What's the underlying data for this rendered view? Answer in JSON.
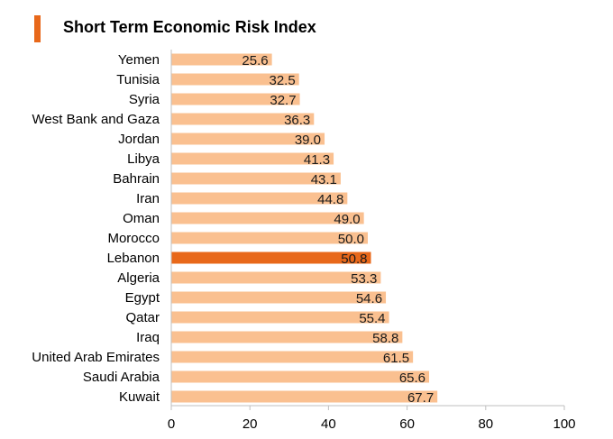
{
  "header": {
    "title": "Short Term Economic Risk Index"
  },
  "chart_data": {
    "type": "bar",
    "orientation": "horizontal",
    "title": "Short Term Economic Risk Index",
    "xlabel": "",
    "ylabel": "",
    "xlim": [
      0,
      100
    ],
    "x_ticks": [
      0,
      20,
      40,
      60,
      80,
      100
    ],
    "grid": false,
    "categories": [
      "Yemen",
      "Tunisia",
      "Syria",
      "West Bank and Gaza",
      "Jordan",
      "Libya",
      "Bahrain",
      "Iran",
      "Oman",
      "Morocco",
      "Lebanon",
      "Algeria",
      "Egypt",
      "Qatar",
      "Iraq",
      "United Arab Emirates",
      "Saudi Arabia",
      "Kuwait"
    ],
    "values": [
      25.6,
      32.5,
      32.7,
      36.3,
      39.0,
      41.3,
      43.1,
      44.8,
      49.0,
      50.0,
      50.8,
      53.3,
      54.6,
      55.4,
      58.8,
      61.5,
      65.6,
      67.7
    ],
    "value_labels": [
      "25.6",
      "32.5",
      "32.7",
      "36.3",
      "39.0",
      "41.3",
      "43.1",
      "44.8",
      "49.0",
      "50.0",
      "50.8",
      "53.3",
      "54.6",
      "55.4",
      "58.8",
      "61.5",
      "65.6",
      "67.7"
    ],
    "highlight": "Lebanon",
    "colors": {
      "bar": "#FAC090",
      "highlight_bar": "#E8681A",
      "accent": "#E8681A",
      "axis": "#bfbfbf"
    }
  }
}
